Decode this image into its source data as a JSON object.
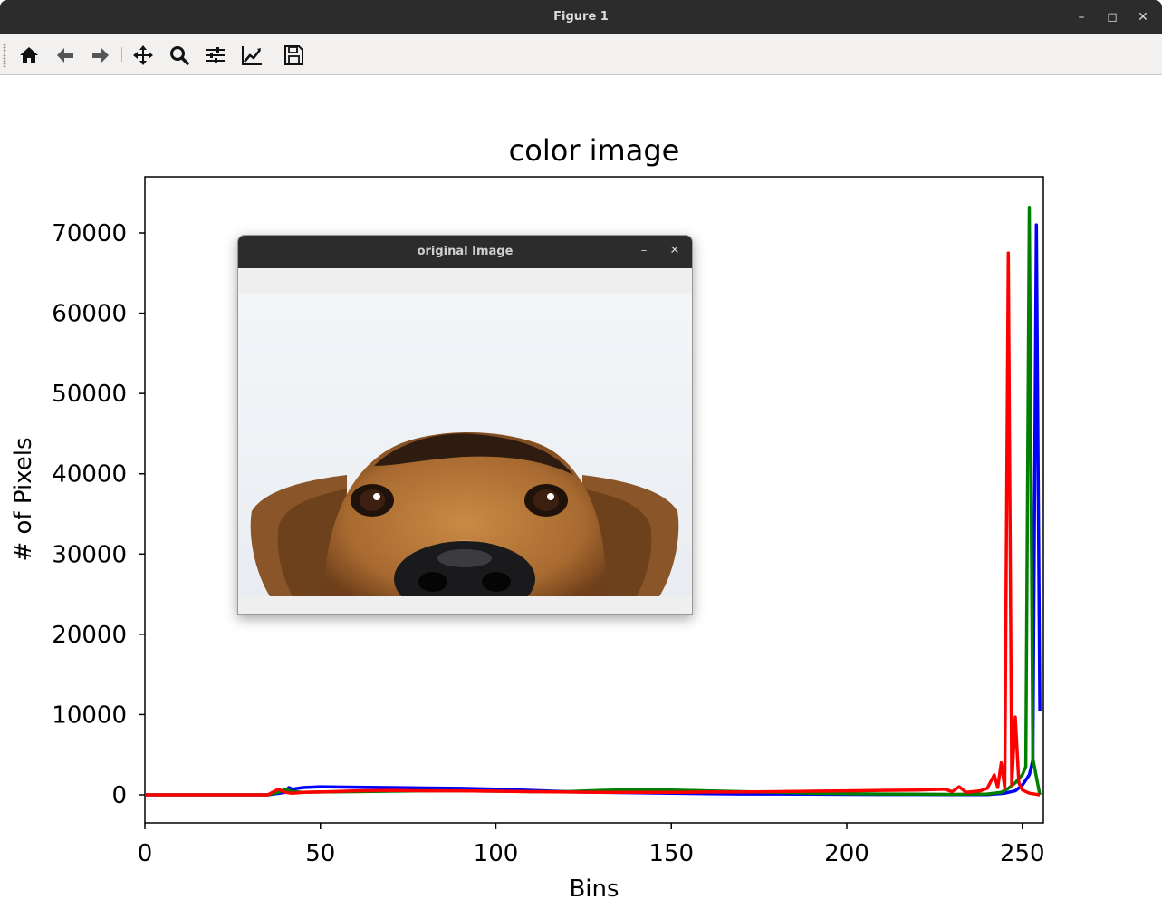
{
  "window": {
    "title": "Figure 1"
  },
  "window_controls": {
    "minimize": "–",
    "maximize": "◻",
    "close": "✕"
  },
  "toolbar": {
    "buttons": [
      "home-icon",
      "back-icon",
      "forward-icon",
      "pan-icon",
      "zoom-icon",
      "configure-subplots-icon",
      "edit-axis-icon",
      "save-icon"
    ]
  },
  "popup": {
    "title": "original Image",
    "minimize": "–",
    "close": "✕",
    "image_subject": "dog face peeking from bottom"
  },
  "colors": {
    "blue": "#0000ff",
    "green": "#008000",
    "red": "#ff0000",
    "titlebar": "#2c2c2c"
  },
  "chart_data": {
    "type": "line",
    "title": "color image",
    "xlabel": "Bins",
    "ylabel": "# of Pixels",
    "xlim": [
      0,
      256
    ],
    "ylim": [
      -3500,
      77000
    ],
    "xticks": [
      0,
      50,
      100,
      150,
      200,
      250
    ],
    "yticks": [
      0,
      10000,
      20000,
      30000,
      40000,
      50000,
      60000,
      70000
    ],
    "series": [
      {
        "color": "blue",
        "points": [
          [
            0,
            0
          ],
          [
            35,
            0
          ],
          [
            40,
            300
          ],
          [
            41,
            900
          ],
          [
            42,
            700
          ],
          [
            45,
            900
          ],
          [
            50,
            1000
          ],
          [
            60,
            950
          ],
          [
            70,
            900
          ],
          [
            80,
            850
          ],
          [
            90,
            800
          ],
          [
            100,
            700
          ],
          [
            110,
            550
          ],
          [
            120,
            400
          ],
          [
            130,
            300
          ],
          [
            140,
            250
          ],
          [
            150,
            200
          ],
          [
            160,
            150
          ],
          [
            170,
            100
          ],
          [
            180,
            100
          ],
          [
            190,
            80
          ],
          [
            200,
            60
          ],
          [
            210,
            50
          ],
          [
            220,
            40
          ],
          [
            230,
            30
          ],
          [
            240,
            30
          ],
          [
            245,
            200
          ],
          [
            248,
            500
          ],
          [
            250,
            1200
          ],
          [
            252,
            2500
          ],
          [
            253,
            4300
          ],
          [
            254,
            71000
          ],
          [
            255,
            10500
          ]
        ]
      },
      {
        "color": "green",
        "points": [
          [
            0,
            0
          ],
          [
            35,
            0
          ],
          [
            38,
            300
          ],
          [
            40,
            700
          ],
          [
            42,
            400
          ],
          [
            45,
            300
          ],
          [
            50,
            350
          ],
          [
            60,
            400
          ],
          [
            70,
            450
          ],
          [
            80,
            500
          ],
          [
            90,
            500
          ],
          [
            100,
            450
          ],
          [
            110,
            400
          ],
          [
            120,
            400
          ],
          [
            130,
            550
          ],
          [
            140,
            650
          ],
          [
            150,
            600
          ],
          [
            160,
            500
          ],
          [
            170,
            400
          ],
          [
            180,
            300
          ],
          [
            190,
            200
          ],
          [
            200,
            150
          ],
          [
            210,
            100
          ],
          [
            220,
            80
          ],
          [
            230,
            60
          ],
          [
            240,
            100
          ],
          [
            244,
            300
          ],
          [
            246,
            800
          ],
          [
            248,
            1500
          ],
          [
            250,
            2500
          ],
          [
            251,
            3500
          ],
          [
            252,
            73200
          ],
          [
            253,
            4500
          ],
          [
            255,
            0
          ]
        ]
      },
      {
        "color": "red",
        "points": [
          [
            0,
            0
          ],
          [
            35,
            0
          ],
          [
            38,
            700
          ],
          [
            40,
            300
          ],
          [
            42,
            200
          ],
          [
            45,
            300
          ],
          [
            50,
            350
          ],
          [
            60,
            500
          ],
          [
            70,
            550
          ],
          [
            80,
            500
          ],
          [
            90,
            500
          ],
          [
            100,
            450
          ],
          [
            110,
            400
          ],
          [
            120,
            350
          ],
          [
            130,
            300
          ],
          [
            140,
            300
          ],
          [
            150,
            300
          ],
          [
            160,
            350
          ],
          [
            170,
            350
          ],
          [
            180,
            400
          ],
          [
            190,
            450
          ],
          [
            200,
            500
          ],
          [
            210,
            550
          ],
          [
            220,
            600
          ],
          [
            228,
            700
          ],
          [
            230,
            400
          ],
          [
            232,
            1000
          ],
          [
            234,
            300
          ],
          [
            238,
            500
          ],
          [
            240,
            800
          ],
          [
            242,
            2500
          ],
          [
            243,
            900
          ],
          [
            244,
            4000
          ],
          [
            245,
            800
          ],
          [
            246,
            67500
          ],
          [
            247,
            1200
          ],
          [
            248,
            9700
          ],
          [
            249,
            1500
          ],
          [
            250,
            600
          ],
          [
            252,
            200
          ],
          [
            255,
            0
          ]
        ]
      }
    ]
  }
}
